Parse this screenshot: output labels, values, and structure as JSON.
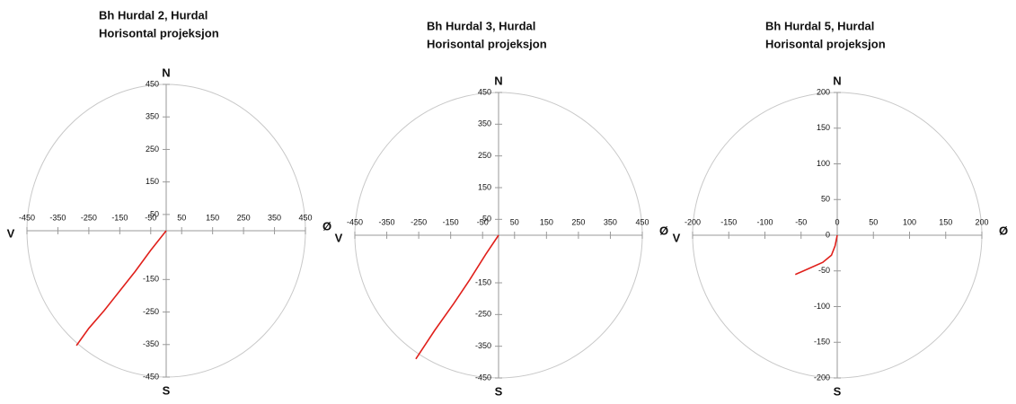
{
  "chart_data": [
    {
      "type": "line",
      "title": "Bh Hurdal 2,  Hurdal",
      "subtitle": "Horisontal projeksjon",
      "north": "N",
      "south": "S",
      "west": "V",
      "east": "Ø",
      "xlim": [
        -450,
        450
      ],
      "ylim": [
        -450,
        450
      ],
      "xticks": [
        -450,
        -350,
        -250,
        -150,
        -50,
        50,
        150,
        250,
        350,
        450
      ],
      "yticks": [
        450,
        350,
        250,
        150,
        50,
        -150,
        -250,
        -350,
        -450
      ],
      "series": [
        {
          "color": "#e0201b",
          "x": [
            0,
            -50,
            -100,
            -150,
            -200,
            -250,
            -290
          ],
          "values": [
            0,
            -60,
            -125,
            -185,
            -245,
            -300,
            -353
          ]
        }
      ]
    },
    {
      "type": "line",
      "title": "Bh Hurdal 3,  Hurdal",
      "subtitle": "Horisontal projeksjon",
      "north": "N",
      "south": "S",
      "west": "V",
      "east": "Ø",
      "xlim": [
        -450,
        450
      ],
      "ylim": [
        -450,
        450
      ],
      "xticks": [
        -450,
        -350,
        -250,
        -150,
        -50,
        50,
        150,
        250,
        350,
        450
      ],
      "yticks": [
        450,
        350,
        250,
        150,
        50,
        -150,
        -250,
        -350,
        -450
      ],
      "series": [
        {
          "color": "#e0201b",
          "x": [
            0,
            -40,
            -90,
            -140,
            -200,
            -259
          ],
          "values": [
            0,
            -60,
            -140,
            -215,
            -300,
            -390
          ]
        }
      ]
    },
    {
      "type": "line",
      "title": "Bh Hurdal 5,  Hurdal",
      "subtitle": "Horisontal projeksjon",
      "north": "N",
      "south": "S",
      "west": "V",
      "east": "Ø",
      "xlim": [
        -200,
        200
      ],
      "ylim": [
        -200,
        200
      ],
      "xticks": [
        -200,
        -150,
        -100,
        -50,
        0,
        50,
        100,
        150,
        200
      ],
      "yticks": [
        200,
        150,
        100,
        50,
        0,
        -50,
        -100,
        -150,
        -200
      ],
      "series": [
        {
          "color": "#e0201b",
          "x": [
            0,
            -3,
            -8,
            -20,
            -40,
            -58
          ],
          "values": [
            0,
            -15,
            -28,
            -38,
            -47,
            -55
          ]
        }
      ]
    }
  ]
}
